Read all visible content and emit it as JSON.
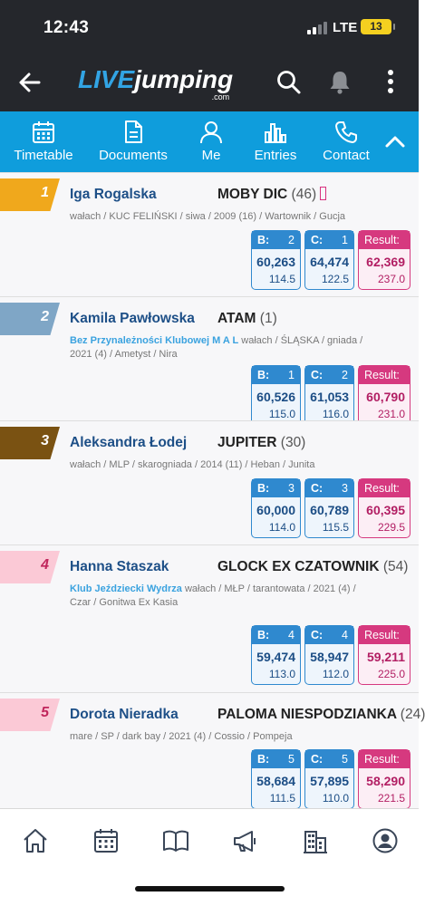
{
  "status": {
    "time": "12:43",
    "network": "LTE",
    "battery": "13"
  },
  "header": {
    "logo_part1": "LIVE",
    "logo_part2": "jumping",
    "logo_domain": ".com",
    "back_icon": "arrow-left-icon",
    "search_icon": "search-icon",
    "bell_icon": "bell-icon",
    "menu_icon": "more-vertical-icon"
  },
  "tabs": [
    {
      "label": "Timetable",
      "icon": "calendar-icon"
    },
    {
      "label": "Documents",
      "icon": "document-icon"
    },
    {
      "label": "Me",
      "icon": "person-icon"
    },
    {
      "label": "Entries",
      "icon": "bar-chart-icon"
    },
    {
      "label": "Contact",
      "icon": "phone-icon"
    }
  ],
  "labels": {
    "b": "B:",
    "c": "C:",
    "result": "Result:"
  },
  "results": [
    {
      "rank": "1",
      "rank_color": "#f0a81c",
      "rank_text_color": "#ffffff",
      "rider": "Iga Rogalska",
      "horse": "MOBY DIC",
      "horse_no": "(46)",
      "club": "",
      "details": "wałach / KUC FELIŃSKI / siwa / 2009 (16) / Wartownik / Gucja",
      "b_rank": "2",
      "b_score": "60,263",
      "b_points": "114.5",
      "c_rank": "1",
      "c_score": "64,474",
      "c_points": "122.5",
      "result_score": "62,369",
      "result_points": "237.0"
    },
    {
      "rank": "2",
      "rank_color": "#7fa6c6",
      "rank_text_color": "#ffffff",
      "rider": "Kamila Pawłowska",
      "horse": "ATAM",
      "horse_no": "(1)",
      "club": "Bez Przynależności Klubowej M A L",
      "details": "wałach / ŚLĄSKA / gniada / 2021 (4) / Ametyst / Nira",
      "b_rank": "1",
      "b_score": "60,526",
      "b_points": "115.0",
      "c_rank": "2",
      "c_score": "61,053",
      "c_points": "116.0",
      "result_score": "60,790",
      "result_points": "231.0"
    },
    {
      "rank": "3",
      "rank_color": "#7a5212",
      "rank_text_color": "#ffffff",
      "rider": "Aleksandra Łodej",
      "horse": "JUPITER",
      "horse_no": "(30)",
      "club": "",
      "details": "wałach / MLP / skarogniada / 2014 (11) / Heban / Junita",
      "b_rank": "3",
      "b_score": "60,000",
      "b_points": "114.0",
      "c_rank": "3",
      "c_score": "60,789",
      "c_points": "115.5",
      "result_score": "60,395",
      "result_points": "229.5"
    },
    {
      "rank": "4",
      "rank_color": "#fbc9d6",
      "rank_text_color": "#c0265c",
      "rider": "Hanna Staszak",
      "horse": "GLOCK EX CZATOWNIK",
      "horse_no": "(54)",
      "club": "Klub Jeździecki Wydrza",
      "details": "wałach / MŁP / tarantowata / 2021 (4) / Czar / Gonitwa Ex Kasia",
      "b_rank": "4",
      "b_score": "59,474",
      "b_points": "113.0",
      "c_rank": "4",
      "c_score": "58,947",
      "c_points": "112.0",
      "result_score": "59,211",
      "result_points": "225.0"
    },
    {
      "rank": "5",
      "rank_color": "#fbc9d6",
      "rank_text_color": "#c0265c",
      "rider": "Dorota Nieradka",
      "horse": "PALOMA NIESPODZIANKA",
      "horse_no": "(24)",
      "club": "",
      "details": "mare / SP / dark bay / 2021 (4) / Cossio / Pompeja",
      "b_rank": "5",
      "b_score": "58,684",
      "b_points": "111.5",
      "c_rank": "5",
      "c_score": "57,895",
      "c_points": "110.0",
      "result_score": "58,290",
      "result_points": "221.5"
    }
  ],
  "bottom_nav": [
    {
      "icon": "home-icon"
    },
    {
      "icon": "calendar-icon"
    },
    {
      "icon": "book-icon"
    },
    {
      "icon": "megaphone-icon"
    },
    {
      "icon": "buildings-icon"
    },
    {
      "icon": "account-icon"
    }
  ]
}
